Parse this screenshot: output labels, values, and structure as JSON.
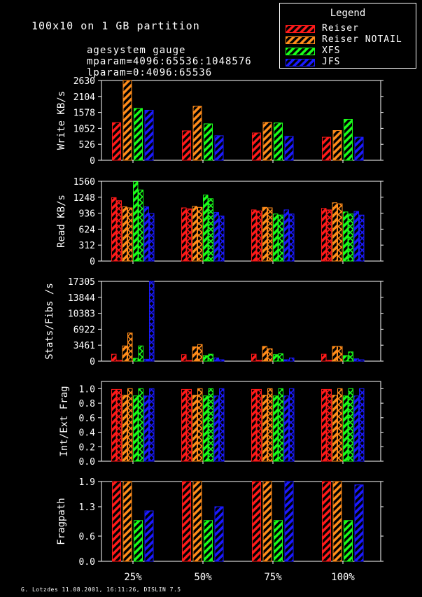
{
  "header": {
    "title": "100x10 on 1 GB partition",
    "params": [
      "agesystem gauge",
      "mparam=4096:65536:1048576",
      "lparam=0:4096:65536"
    ]
  },
  "footer": "G. Lotzdes 11.08.2001, 16:11:26, DISLIN 7.5",
  "legend": {
    "title": "Legend",
    "items": [
      {
        "label": "Reiser",
        "color": "#ff1a1a"
      },
      {
        "label": "Reiser NOTAIL",
        "color": "#ff8c1a"
      },
      {
        "label": "XFS",
        "color": "#1aff1a"
      },
      {
        "label": "JFS",
        "color": "#1a1aff"
      }
    ]
  },
  "chart_data": [
    {
      "type": "bar",
      "ylabel": "Write KB/s",
      "categories": [
        "25%",
        "50%",
        "75%",
        "100%"
      ],
      "ylim": [
        0,
        2630
      ],
      "yticks": [
        0,
        526,
        1052,
        1578,
        2104,
        2630
      ],
      "bars_per_series": 1,
      "series": [
        {
          "name": "Reiser",
          "values": [
            [
              1240
            ],
            [
              970
            ],
            [
              900
            ],
            [
              760
            ]
          ]
        },
        {
          "name": "Reiser NOTAIL",
          "values": [
            [
              2630
            ],
            [
              1780
            ],
            [
              1250
            ],
            [
              980
            ]
          ]
        },
        {
          "name": "XFS",
          "values": [
            [
              1710
            ],
            [
              1200
            ],
            [
              1230
            ],
            [
              1350
            ]
          ]
        },
        {
          "name": "JFS",
          "values": [
            [
              1650
            ],
            [
              810
            ],
            [
              790
            ],
            [
              760
            ]
          ]
        }
      ]
    },
    {
      "type": "bar",
      "ylabel": "Read KB/s",
      "categories": [
        "25%",
        "50%",
        "75%",
        "100%"
      ],
      "ylim": [
        0,
        1560
      ],
      "yticks": [
        0,
        312,
        624,
        936,
        1248,
        1560
      ],
      "bars_per_series": 2,
      "series": [
        {
          "name": "Reiser",
          "values": [
            [
              1240,
              1180
            ],
            [
              1040,
              1020
            ],
            [
              1000,
              980
            ],
            [
              1030,
              1000
            ]
          ]
        },
        {
          "name": "Reiser NOTAIL",
          "values": [
            [
              1060,
              1040
            ],
            [
              1070,
              1050
            ],
            [
              1050,
              1040
            ],
            [
              1140,
              1120
            ]
          ]
        },
        {
          "name": "XFS",
          "values": [
            [
              1550,
              1390
            ],
            [
              1290,
              1220
            ],
            [
              920,
              900
            ],
            [
              960,
              920
            ]
          ]
        },
        {
          "name": "JFS",
          "values": [
            [
              1060,
              930
            ],
            [
              950,
              880
            ],
            [
              1000,
              920
            ],
            [
              970,
              900
            ]
          ]
        }
      ]
    },
    {
      "type": "bar",
      "ylabel": "Stats/Fibs /s",
      "categories": [
        "25%",
        "50%",
        "75%",
        "100%"
      ],
      "ylim": [
        0,
        17305
      ],
      "yticks": [
        0,
        3461,
        6922,
        10383,
        13844,
        17305
      ],
      "bars_per_series": 2,
      "series": [
        {
          "name": "Reiser",
          "values": [
            [
              1500,
              200
            ],
            [
              1400,
              150
            ],
            [
              1500,
              200
            ],
            [
              1500,
              200
            ]
          ]
        },
        {
          "name": "Reiser NOTAIL",
          "values": [
            [
              3300,
              6100
            ],
            [
              3100,
              3600
            ],
            [
              3200,
              2700
            ],
            [
              3200,
              3200
            ]
          ]
        },
        {
          "name": "XFS",
          "values": [
            [
              600,
              3300
            ],
            [
              1200,
              1500
            ],
            [
              1400,
              1600
            ],
            [
              1200,
              2000
            ]
          ]
        },
        {
          "name": "JFS",
          "values": [
            [
              400,
              17305
            ],
            [
              700,
              300
            ],
            [
              300,
              700
            ],
            [
              500,
              300
            ]
          ]
        }
      ]
    },
    {
      "type": "bar",
      "ylabel": "Int/Ext Frag",
      "categories": [
        "25%",
        "50%",
        "75%",
        "100%"
      ],
      "ylim": [
        0,
        1.1
      ],
      "yticks": [
        0.0,
        0.2,
        0.4,
        0.6,
        0.8,
        1.0
      ],
      "bars_per_series": 2,
      "series": [
        {
          "name": "Reiser",
          "values": [
            [
              0.99,
              0.99
            ],
            [
              0.99,
              0.99
            ],
            [
              0.99,
              0.99
            ],
            [
              0.99,
              0.99
            ]
          ]
        },
        {
          "name": "Reiser NOTAIL",
          "values": [
            [
              0.91,
              1.0
            ],
            [
              0.91,
              1.0
            ],
            [
              0.91,
              1.0
            ],
            [
              0.91,
              1.0
            ]
          ]
        },
        {
          "name": "XFS",
          "values": [
            [
              0.9,
              1.0
            ],
            [
              0.9,
              1.0
            ],
            [
              0.9,
              1.0
            ],
            [
              0.9,
              1.0
            ]
          ]
        },
        {
          "name": "JFS",
          "values": [
            [
              0.9,
              1.0
            ],
            [
              0.9,
              1.0
            ],
            [
              0.9,
              1.0
            ],
            [
              0.9,
              1.0
            ]
          ]
        }
      ]
    },
    {
      "type": "bar",
      "ylabel": "Fragpath",
      "categories": [
        "25%",
        "50%",
        "75%",
        "100%"
      ],
      "ylim": [
        0,
        1.9
      ],
      "yticks": [
        0.0,
        0.6,
        1.3,
        1.9
      ],
      "bars_per_series": 1,
      "series": [
        {
          "name": "Reiser",
          "values": [
            [
              1.9
            ],
            [
              1.9
            ],
            [
              1.9
            ],
            [
              1.9
            ]
          ]
        },
        {
          "name": "Reiser NOTAIL",
          "values": [
            [
              1.9
            ],
            [
              1.9
            ],
            [
              1.9
            ],
            [
              1.9
            ]
          ]
        },
        {
          "name": "XFS",
          "values": [
            [
              0.97
            ],
            [
              0.97
            ],
            [
              0.97
            ],
            [
              0.97
            ]
          ]
        },
        {
          "name": "JFS",
          "values": [
            [
              1.2
            ],
            [
              1.3
            ],
            [
              1.9
            ],
            [
              1.82
            ]
          ]
        }
      ]
    }
  ]
}
